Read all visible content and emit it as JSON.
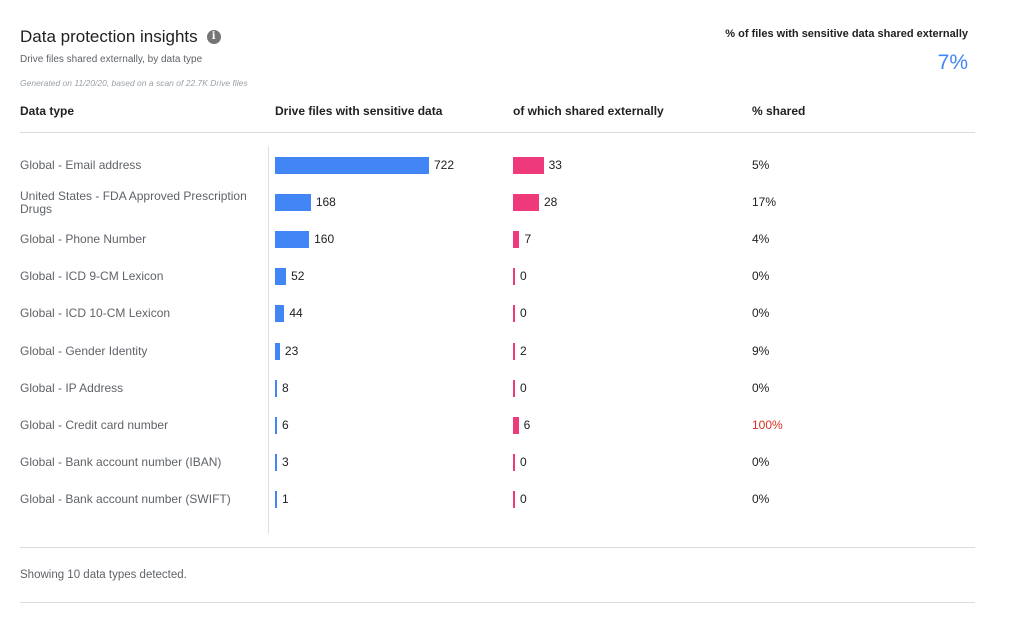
{
  "header": {
    "title": "Data protection insights",
    "subtitle": "Drive files shared externally, by data type",
    "generated": "Generated on 11/20/20, based on a scan of 22.7K Drive files",
    "kpi_label": "% of files with sensitive data shared externally",
    "kpi_value": "7%"
  },
  "table": {
    "columns": [
      "Data type",
      "Drive files with sensitive data",
      "of which shared externally",
      "% shared"
    ],
    "max_value": 722,
    "rows": [
      {
        "label": "Global - Email address",
        "files": 722,
        "shared": 33,
        "pct": "5%"
      },
      {
        "label": "United States - FDA Approved Prescription Drugs",
        "files": 168,
        "shared": 28,
        "pct": "17%"
      },
      {
        "label": "Global - Phone Number",
        "files": 160,
        "shared": 7,
        "pct": "4%"
      },
      {
        "label": "Global - ICD 9-CM Lexicon",
        "files": 52,
        "shared": 0,
        "pct": "0%"
      },
      {
        "label": "Global - ICD 10-CM Lexicon",
        "files": 44,
        "shared": 0,
        "pct": "0%"
      },
      {
        "label": "Global - Gender Identity",
        "files": 23,
        "shared": 2,
        "pct": "9%"
      },
      {
        "label": "Global - IP Address",
        "files": 8,
        "shared": 0,
        "pct": "0%"
      },
      {
        "label": "Global - Credit card number",
        "files": 6,
        "shared": 6,
        "pct": "100%",
        "alert": true
      },
      {
        "label": "Global - Bank account number (IBAN)",
        "files": 3,
        "shared": 0,
        "pct": "0%"
      },
      {
        "label": "Global - Bank account number (SWIFT)",
        "files": 1,
        "shared": 0,
        "pct": "0%"
      }
    ]
  },
  "footer": {
    "text": "Showing 10 data types detected."
  },
  "colors": {
    "files_bar": "#4285f4",
    "shared_bar": "#ee3a7a",
    "alert": "#d93025",
    "kpi": "#4285f4"
  }
}
